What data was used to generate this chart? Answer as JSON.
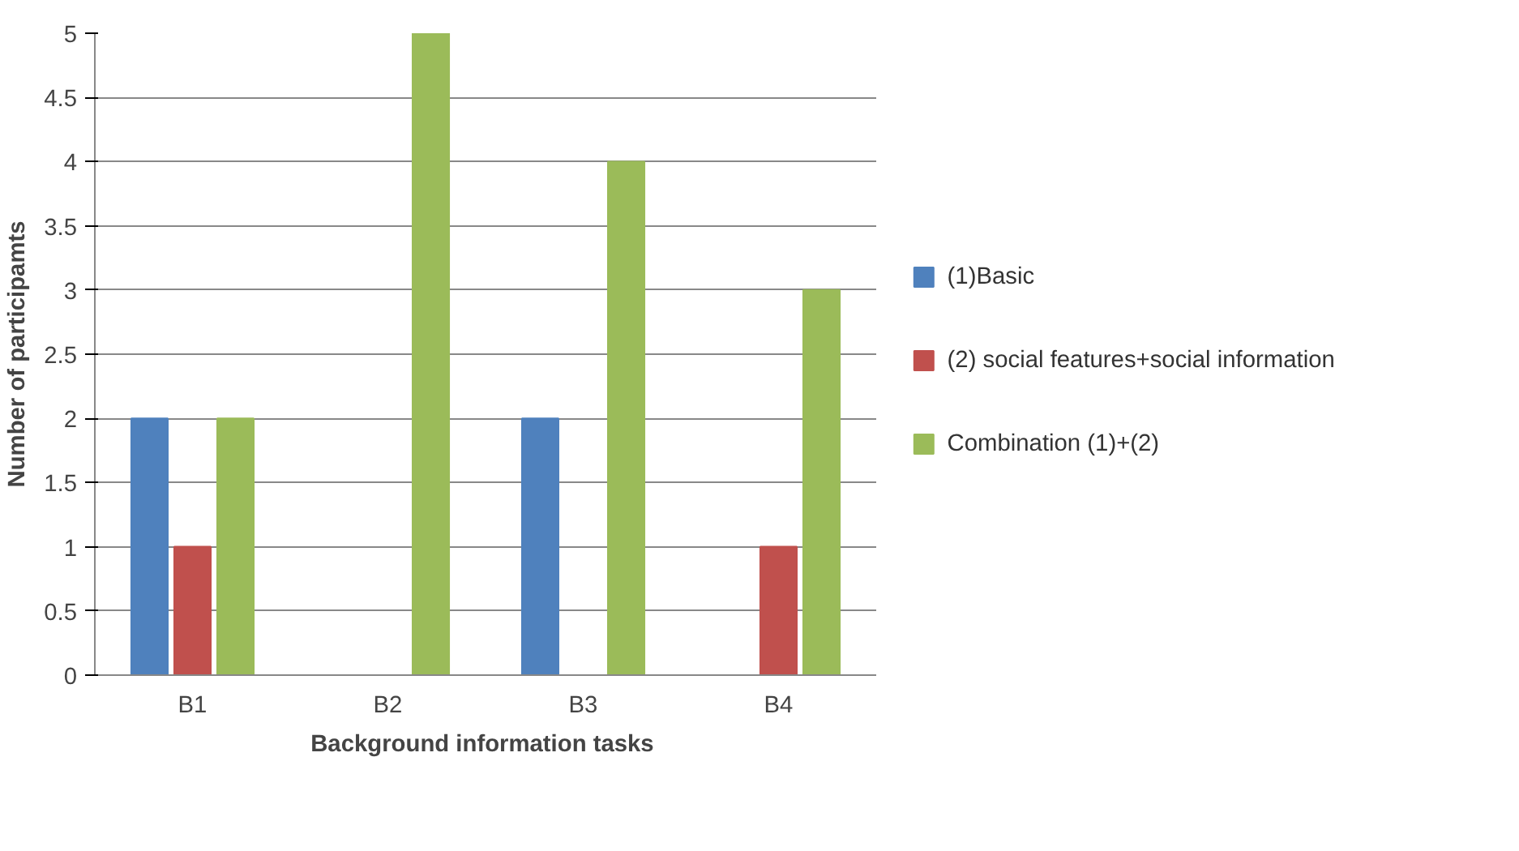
{
  "chart_data": {
    "type": "bar",
    "xlabel": "Background  information tasks",
    "ylabel": "Number of participamts",
    "categories": [
      "B1",
      "B2",
      "B3",
      "B4"
    ],
    "series": [
      {
        "name": "(1)Basic",
        "color": "#4f81bd",
        "values": [
          2,
          0,
          2,
          0
        ]
      },
      {
        "name": "(2) social features+social information",
        "color": "#c0504d",
        "values": [
          1,
          0,
          0,
          1
        ]
      },
      {
        "name": "Combination (1)+(2)",
        "color": "#9bbb59",
        "values": [
          2,
          5,
          4,
          3
        ]
      }
    ],
    "ylim": [
      0,
      5
    ],
    "yticks": [
      0,
      0.5,
      1,
      1.5,
      2,
      2.5,
      3,
      3.5,
      4,
      4.5,
      5
    ],
    "grid": "y",
    "legend": "right"
  }
}
